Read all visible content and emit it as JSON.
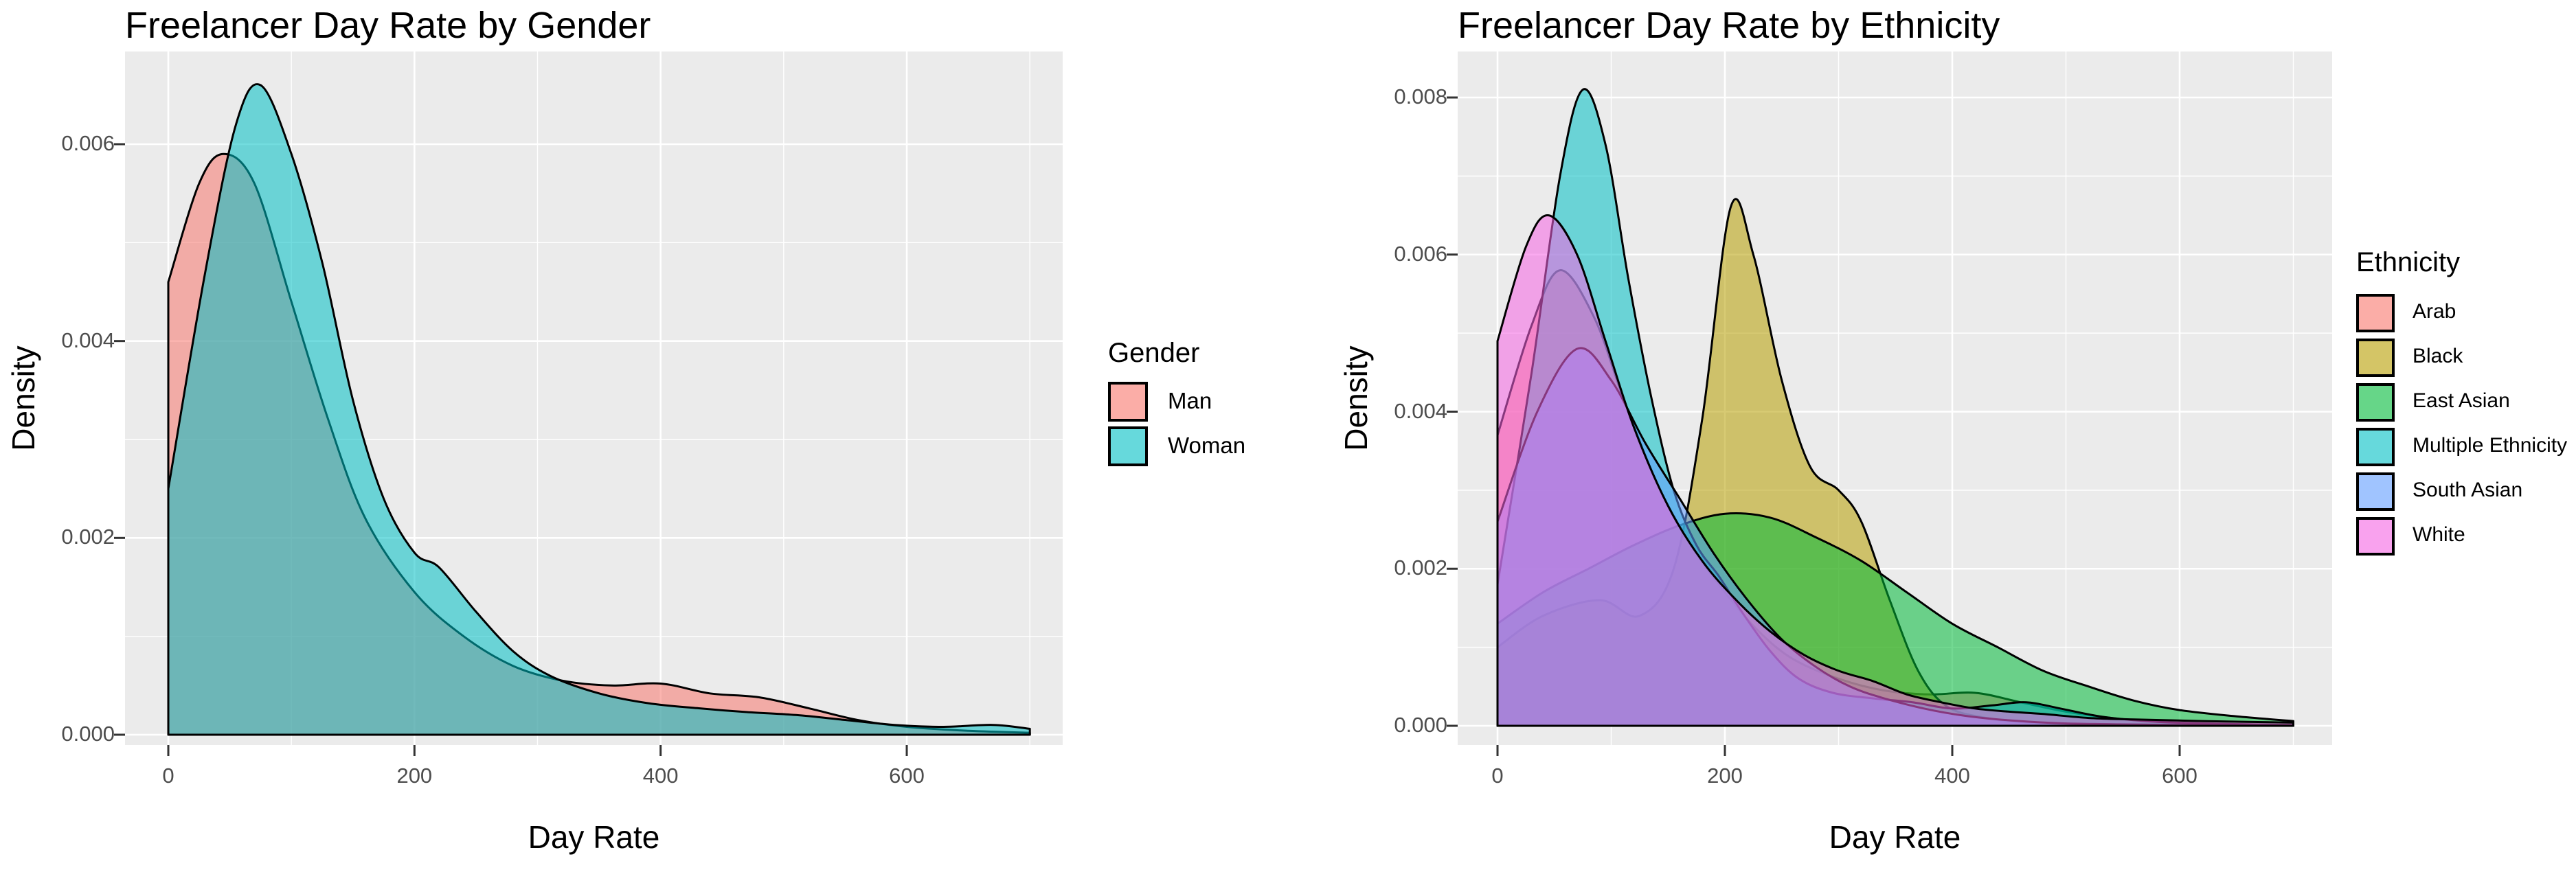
{
  "style": {
    "panel_bg": "#EBEBEB",
    "grid_color": "#FFFFFF",
    "tick_mark_color": "#333333",
    "tick_label_color": "#4D4D4D",
    "outline_color": "#000000",
    "fill_alpha": 0.55,
    "legend_key_alpha": 0.6
  },
  "chart_data": [
    {
      "type": "area",
      "variant": "overlapping-density",
      "title": "Freelancer Day Rate by Gender",
      "xlabel": "Day Rate",
      "ylabel": "Density",
      "xlim": [
        -35,
        727
      ],
      "ylim": [
        -0.0001,
        0.00695
      ],
      "grid": true,
      "x_ticks": [
        0,
        200,
        400,
        600
      ],
      "x_tick_labels": [
        "0",
        "200",
        "400",
        "600"
      ],
      "x_minor_ticks": [
        100,
        300,
        500,
        700
      ],
      "y_ticks": [
        0,
        0.002,
        0.004,
        0.006
      ],
      "y_tick_labels": [
        "0.000",
        "0.002",
        "0.004",
        "0.006"
      ],
      "legend": {
        "title": "Gender",
        "position": "right",
        "entries": [
          {
            "label": "Man",
            "color": "#F8766D"
          },
          {
            "label": "Woman",
            "color": "#00BFC4"
          }
        ]
      },
      "series": [
        {
          "name": "Man",
          "color": "#F8766D",
          "points": [
            [
              0,
              0.0046
            ],
            [
              25,
              0.0056
            ],
            [
              45,
              0.0059
            ],
            [
              70,
              0.0056
            ],
            [
              100,
              0.0044
            ],
            [
              130,
              0.0032
            ],
            [
              160,
              0.0022
            ],
            [
              200,
              0.00145
            ],
            [
              240,
              0.001
            ],
            [
              280,
              0.0007
            ],
            [
              320,
              0.00055
            ],
            [
              360,
              0.0005
            ],
            [
              400,
              0.00052
            ],
            [
              440,
              0.00042
            ],
            [
              480,
              0.00038
            ],
            [
              520,
              0.00027
            ],
            [
              560,
              0.00015
            ],
            [
              600,
              8e-05
            ],
            [
              650,
              4e-05
            ],
            [
              700,
              2e-05
            ]
          ]
        },
        {
          "name": "Woman",
          "color": "#00BFC4",
          "points": [
            [
              0,
              0.0025
            ],
            [
              30,
              0.0047
            ],
            [
              55,
              0.0062
            ],
            [
              75,
              0.0066
            ],
            [
              100,
              0.0059
            ],
            [
              125,
              0.0048
            ],
            [
              150,
              0.0034
            ],
            [
              175,
              0.0024
            ],
            [
              200,
              0.00185
            ],
            [
              220,
              0.0017
            ],
            [
              250,
              0.00125
            ],
            [
              280,
              0.00085
            ],
            [
              310,
              0.0006
            ],
            [
              350,
              0.00042
            ],
            [
              390,
              0.00032
            ],
            [
              430,
              0.00027
            ],
            [
              470,
              0.00023
            ],
            [
              510,
              0.0002
            ],
            [
              550,
              0.00015
            ],
            [
              590,
              0.0001
            ],
            [
              630,
              8e-05
            ],
            [
              670,
              0.0001
            ],
            [
              700,
              6e-05
            ]
          ]
        }
      ]
    },
    {
      "type": "area",
      "variant": "overlapping-density",
      "title": "Freelancer Day Rate by Ethnicity",
      "xlabel": "Day Rate",
      "ylabel": "Density",
      "xlim": [
        -35,
        734
      ],
      "ylim": [
        -0.00024,
        0.00859
      ],
      "grid": true,
      "x_ticks": [
        0,
        200,
        400,
        600
      ],
      "x_tick_labels": [
        "0",
        "200",
        "400",
        "600"
      ],
      "x_minor_ticks": [
        100,
        300,
        500,
        700
      ],
      "y_ticks": [
        0,
        0.002,
        0.004,
        0.006,
        0.008
      ],
      "y_tick_labels": [
        "0.000",
        "0.002",
        "0.004",
        "0.006",
        "0.008"
      ],
      "legend": {
        "title": "Ethnicity",
        "position": "right",
        "entries": [
          {
            "label": "Arab",
            "color": "#F8766D"
          },
          {
            "label": "Black",
            "color": "#B79F00"
          },
          {
            "label": "East Asian",
            "color": "#00BA38"
          },
          {
            "label": "Multiple Ethnicity",
            "color": "#00BFC4"
          },
          {
            "label": "South Asian",
            "color": "#619CFF"
          },
          {
            "label": "White",
            "color": "#F564E3"
          }
        ]
      },
      "series": [
        {
          "name": "Arab",
          "color": "#F8766D",
          "points": [
            [
              0,
              0.0037
            ],
            [
              30,
              0.0051
            ],
            [
              55,
              0.0058
            ],
            [
              85,
              0.0052
            ],
            [
              110,
              0.0042
            ],
            [
              140,
              0.0031
            ],
            [
              170,
              0.0023
            ],
            [
              200,
              0.0017
            ],
            [
              230,
              0.0012
            ],
            [
              260,
              0.00085
            ],
            [
              300,
              0.0006
            ],
            [
              340,
              0.00045
            ],
            [
              380,
              0.0004
            ],
            [
              420,
              0.00042
            ],
            [
              460,
              0.0003
            ],
            [
              500,
              0.00018
            ],
            [
              540,
              0.0001
            ],
            [
              580,
              5e-05
            ],
            [
              620,
              3e-05
            ],
            [
              700,
              1e-05
            ]
          ]
        },
        {
          "name": "Black",
          "color": "#B79F00",
          "points": [
            [
              0,
              0.001
            ],
            [
              40,
              0.0014
            ],
            [
              90,
              0.0016
            ],
            [
              125,
              0.0014
            ],
            [
              155,
              0.002
            ],
            [
              180,
              0.0039
            ],
            [
              205,
              0.0066
            ],
            [
              225,
              0.006
            ],
            [
              250,
              0.0044
            ],
            [
              275,
              0.0033
            ],
            [
              300,
              0.003
            ],
            [
              320,
              0.0026
            ],
            [
              345,
              0.0016
            ],
            [
              370,
              0.0007
            ],
            [
              395,
              0.00025
            ],
            [
              430,
              0.0001
            ],
            [
              470,
              4e-05
            ],
            [
              550,
              2e-05
            ],
            [
              700,
              1e-05
            ]
          ]
        },
        {
          "name": "East Asian",
          "color": "#00BA38",
          "points": [
            [
              0,
              0.0013
            ],
            [
              40,
              0.0017
            ],
            [
              80,
              0.002
            ],
            [
              120,
              0.0023
            ],
            [
              160,
              0.00255
            ],
            [
              200,
              0.0027
            ],
            [
              240,
              0.00265
            ],
            [
              280,
              0.0024
            ],
            [
              320,
              0.0021
            ],
            [
              360,
              0.0017
            ],
            [
              400,
              0.0013
            ],
            [
              440,
              0.001
            ],
            [
              480,
              0.0007
            ],
            [
              520,
              0.0005
            ],
            [
              560,
              0.00032
            ],
            [
              600,
              0.0002
            ],
            [
              650,
              0.00012
            ],
            [
              700,
              6e-05
            ]
          ]
        },
        {
          "name": "Multiple Ethnicity",
          "color": "#00BFC4",
          "points": [
            [
              0,
              0.0018
            ],
            [
              30,
              0.0045
            ],
            [
              55,
              0.007
            ],
            [
              75,
              0.0081
            ],
            [
              95,
              0.0074
            ],
            [
              115,
              0.0057
            ],
            [
              135,
              0.0042
            ],
            [
              155,
              0.003
            ],
            [
              175,
              0.0023
            ],
            [
              195,
              0.0019
            ],
            [
              215,
              0.00145
            ],
            [
              240,
              0.00095
            ],
            [
              265,
              0.0006
            ],
            [
              295,
              0.00042
            ],
            [
              330,
              0.00035
            ],
            [
              365,
              0.0003
            ],
            [
              400,
              0.00022
            ],
            [
              435,
              0.00026
            ],
            [
              465,
              0.0003
            ],
            [
              495,
              0.00022
            ],
            [
              530,
              0.00012
            ],
            [
              570,
              6e-05
            ],
            [
              620,
              3e-05
            ],
            [
              700,
              1e-05
            ]
          ]
        },
        {
          "name": "South Asian",
          "color": "#619CFF",
          "points": [
            [
              0,
              0.0026
            ],
            [
              35,
              0.004
            ],
            [
              70,
              0.0048
            ],
            [
              100,
              0.0044
            ],
            [
              130,
              0.0036
            ],
            [
              160,
              0.0029
            ],
            [
              190,
              0.0022
            ],
            [
              220,
              0.0016
            ],
            [
              250,
              0.0011
            ],
            [
              280,
              0.00075
            ],
            [
              310,
              0.0005
            ],
            [
              340,
              0.00035
            ],
            [
              375,
              0.00022
            ],
            [
              410,
              0.00013
            ],
            [
              450,
              7e-05
            ],
            [
              500,
              3e-05
            ],
            [
              600,
              1e-05
            ],
            [
              700,
              0.0
            ]
          ]
        },
        {
          "name": "White",
          "color": "#F564E3",
          "points": [
            [
              0,
              0.0049
            ],
            [
              25,
              0.0061
            ],
            [
              45,
              0.0065
            ],
            [
              70,
              0.006
            ],
            [
              95,
              0.0049
            ],
            [
              120,
              0.0038
            ],
            [
              150,
              0.0028
            ],
            [
              180,
              0.0021
            ],
            [
              210,
              0.0016
            ],
            [
              240,
              0.0012
            ],
            [
              270,
              0.0009
            ],
            [
              300,
              0.0007
            ],
            [
              330,
              0.00057
            ],
            [
              360,
              0.0004
            ],
            [
              390,
              0.0003
            ],
            [
              420,
              0.00022
            ],
            [
              450,
              0.00018
            ],
            [
              480,
              0.00015
            ],
            [
              520,
              0.0001
            ],
            [
              560,
              8e-05
            ],
            [
              620,
              6e-05
            ],
            [
              700,
              4e-05
            ]
          ]
        }
      ]
    }
  ]
}
